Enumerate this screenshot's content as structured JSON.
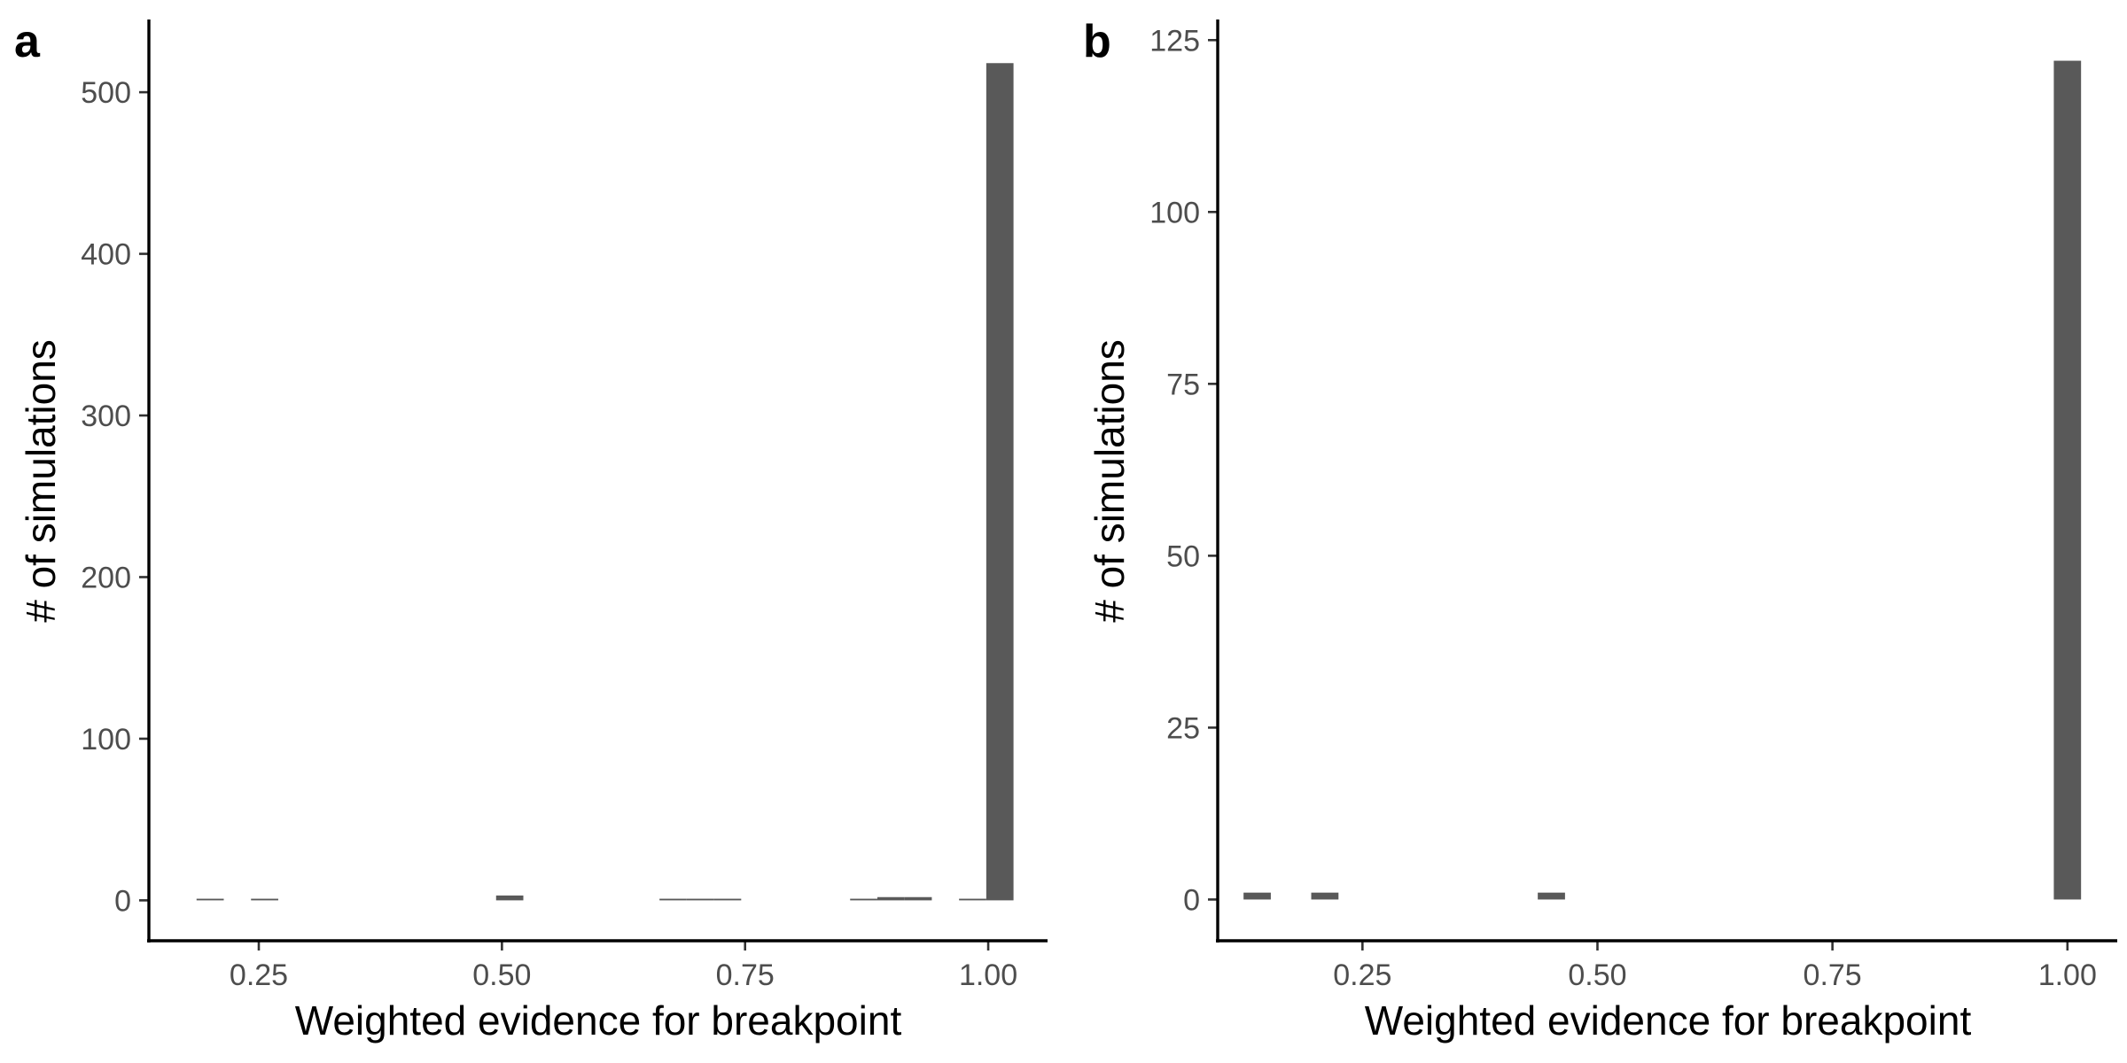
{
  "chart_data": [
    {
      "type": "bar",
      "panel_label": "a",
      "xlabel": "Weighted evidence for breakpoint",
      "ylabel": "# of simulations",
      "xlim": [
        0.137,
        1.061
      ],
      "ylim": [
        -25,
        545
      ],
      "xticks": [
        0.25,
        0.5,
        0.75,
        1.0
      ],
      "xtick_labels": [
        "0.25",
        "0.50",
        "0.75",
        "1.00"
      ],
      "yticks": [
        0,
        100,
        200,
        300,
        400,
        500
      ],
      "ytick_labels": [
        "0",
        "100",
        "200",
        "300",
        "400",
        "500"
      ],
      "bin_width": 0.028,
      "bins": [
        {
          "x": 0.2,
          "count": 1
        },
        {
          "x": 0.256,
          "count": 1
        },
        {
          "x": 0.508,
          "count": 3
        },
        {
          "x": 0.676,
          "count": 1
        },
        {
          "x": 0.704,
          "count": 1
        },
        {
          "x": 0.732,
          "count": 1
        },
        {
          "x": 0.872,
          "count": 1
        },
        {
          "x": 0.9,
          "count": 2
        },
        {
          "x": 0.928,
          "count": 2
        },
        {
          "x": 0.984,
          "count": 1
        },
        {
          "x": 1.012,
          "count": 518
        }
      ],
      "grid": false,
      "bar_color": "#595959"
    },
    {
      "type": "bar",
      "panel_label": "b",
      "xlabel": "Weighted evidence for breakpoint",
      "ylabel": "# of simulations",
      "xlim": [
        0.096,
        1.053
      ],
      "ylim": [
        -6,
        128
      ],
      "xticks": [
        0.25,
        0.5,
        0.75,
        1.0
      ],
      "xtick_labels": [
        "0.25",
        "0.50",
        "0.75",
        "1.00"
      ],
      "yticks": [
        0,
        25,
        50,
        75,
        100,
        125
      ],
      "ytick_labels": [
        "0",
        "25",
        "50",
        "75",
        "100",
        "125"
      ],
      "bin_width": 0.029,
      "bins": [
        {
          "x": 0.138,
          "count": 1
        },
        {
          "x": 0.21,
          "count": 1
        },
        {
          "x": 0.451,
          "count": 1
        },
        {
          "x": 1.0,
          "count": 122
        }
      ],
      "grid": false,
      "bar_color": "#595959"
    }
  ]
}
